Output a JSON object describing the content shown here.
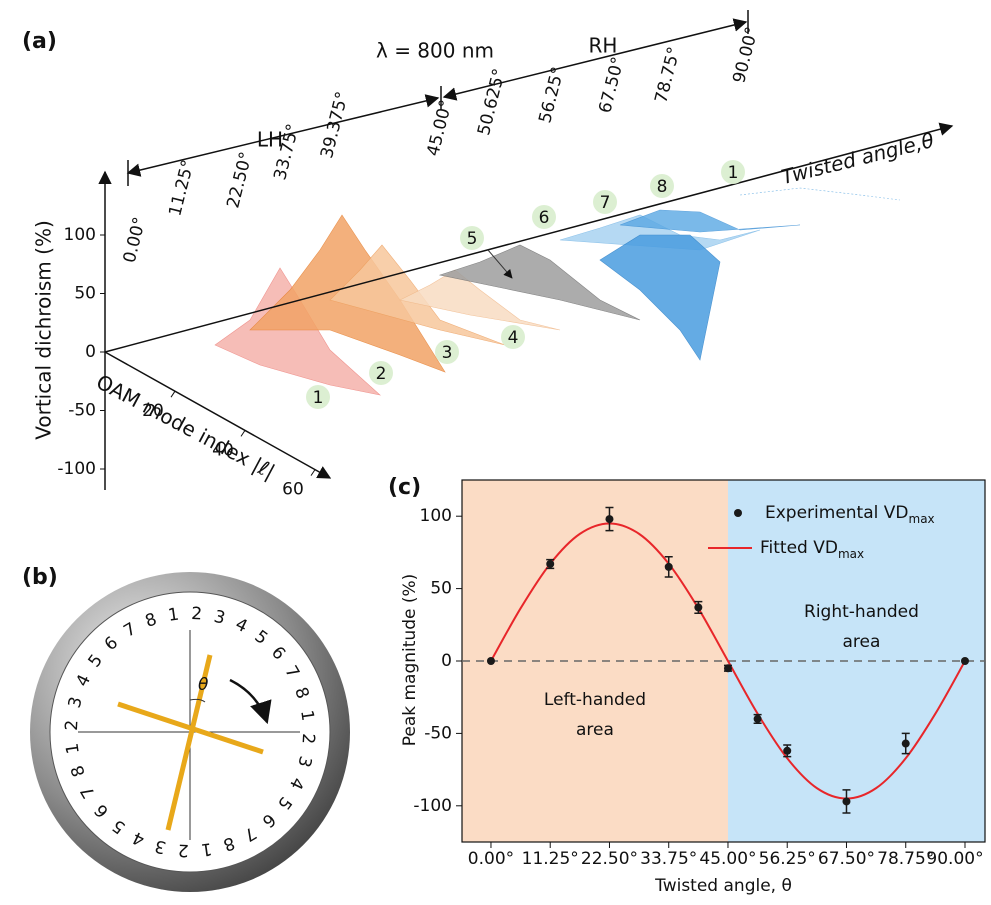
{
  "panel_a": {
    "label": "(a)",
    "wavelength": "λ = 800 nm",
    "lh": "LH",
    "rh": "RH",
    "angles": [
      "0.00°",
      "11.25°",
      "22.50°",
      "33.75°",
      "39.375°",
      "45.00°",
      "50.625°",
      "56.25°",
      "67.50°",
      "78.75°",
      "90.00°"
    ],
    "y_label": "Vortical dichroism (%)",
    "yticks": [
      100,
      50,
      0,
      -50,
      -100
    ],
    "x_label": "OAM mode index |ℓ|",
    "xticks": [
      20,
      40,
      60
    ],
    "theta_label": "Twisted angle,θ",
    "markers": [
      "1",
      "2",
      "3",
      "4",
      "5",
      "6",
      "7",
      "8",
      "1"
    ]
  },
  "panel_b": {
    "label": "(b)",
    "theta": "θ",
    "ring_digits": [
      "1",
      "2",
      "3",
      "4",
      "5",
      "6",
      "7",
      "8",
      "1",
      "2",
      "3",
      "4",
      "5",
      "6",
      "7",
      "8",
      "1",
      "2",
      "3",
      "4",
      "5",
      "6",
      "7",
      "8",
      "1",
      "2",
      "3",
      "4",
      "5",
      "6",
      "7",
      "8"
    ]
  },
  "chart_data": {
    "type": "scatter",
    "label": "(c)",
    "x_label": "Twisted angle, θ",
    "y_label": "Peak magnitude (%)",
    "xlim": [
      -5.5,
      93.8
    ],
    "ylim": [
      -125,
      125
    ],
    "xticks": [
      {
        "value": 0,
        "label": "0.00°"
      },
      {
        "value": 11.25,
        "label": "11.25°"
      },
      {
        "value": 22.5,
        "label": "22.50°"
      },
      {
        "value": 33.75,
        "label": "33.75°"
      },
      {
        "value": 45,
        "label": "45.00°"
      },
      {
        "value": 56.25,
        "label": "56.25°"
      },
      {
        "value": 67.5,
        "label": "67.50°"
      },
      {
        "value": 78.75,
        "label": "78.75°"
      },
      {
        "value": 90,
        "label": "90.00°"
      }
    ],
    "yticks": [
      -100,
      -50,
      0,
      50,
      100
    ],
    "hline": 0,
    "regions": [
      {
        "x0": -5.5,
        "x1": 45,
        "color": "#fbdcc5",
        "label": [
          "Left-handed",
          "area"
        ]
      },
      {
        "x0": 45,
        "x1": 93.8,
        "color": "#c6e4f8",
        "label": [
          "Right-handed",
          "area"
        ]
      }
    ],
    "series": [
      {
        "name": "Experimental VD",
        "subscript": "max",
        "color": "#1a1a1a",
        "x": [
          0,
          11.25,
          22.5,
          33.75,
          39.375,
          45,
          50.625,
          56.25,
          67.5,
          78.75,
          90
        ],
        "values": [
          0,
          67,
          98,
          65,
          37,
          -5,
          -40,
          -62,
          -97,
          -57,
          0
        ],
        "errors": [
          0,
          3,
          8,
          7,
          4,
          2,
          3,
          4,
          8,
          7,
          0
        ]
      },
      {
        "name": "Fitted VD",
        "subscript": "max",
        "color": "#e8262a",
        "x": [
          0,
          5.625,
          11.25,
          16.875,
          22.5,
          28.125,
          33.75,
          39.375,
          45,
          50.625,
          56.25,
          61.875,
          67.5,
          73.125,
          78.75,
          84.375,
          90
        ],
        "values": [
          0,
          36.4,
          67.2,
          87.8,
          95,
          87.8,
          67.2,
          36.4,
          0,
          -36.4,
          -67.2,
          -87.8,
          -95,
          -87.8,
          -67.2,
          -36.4,
          0
        ]
      }
    ]
  }
}
